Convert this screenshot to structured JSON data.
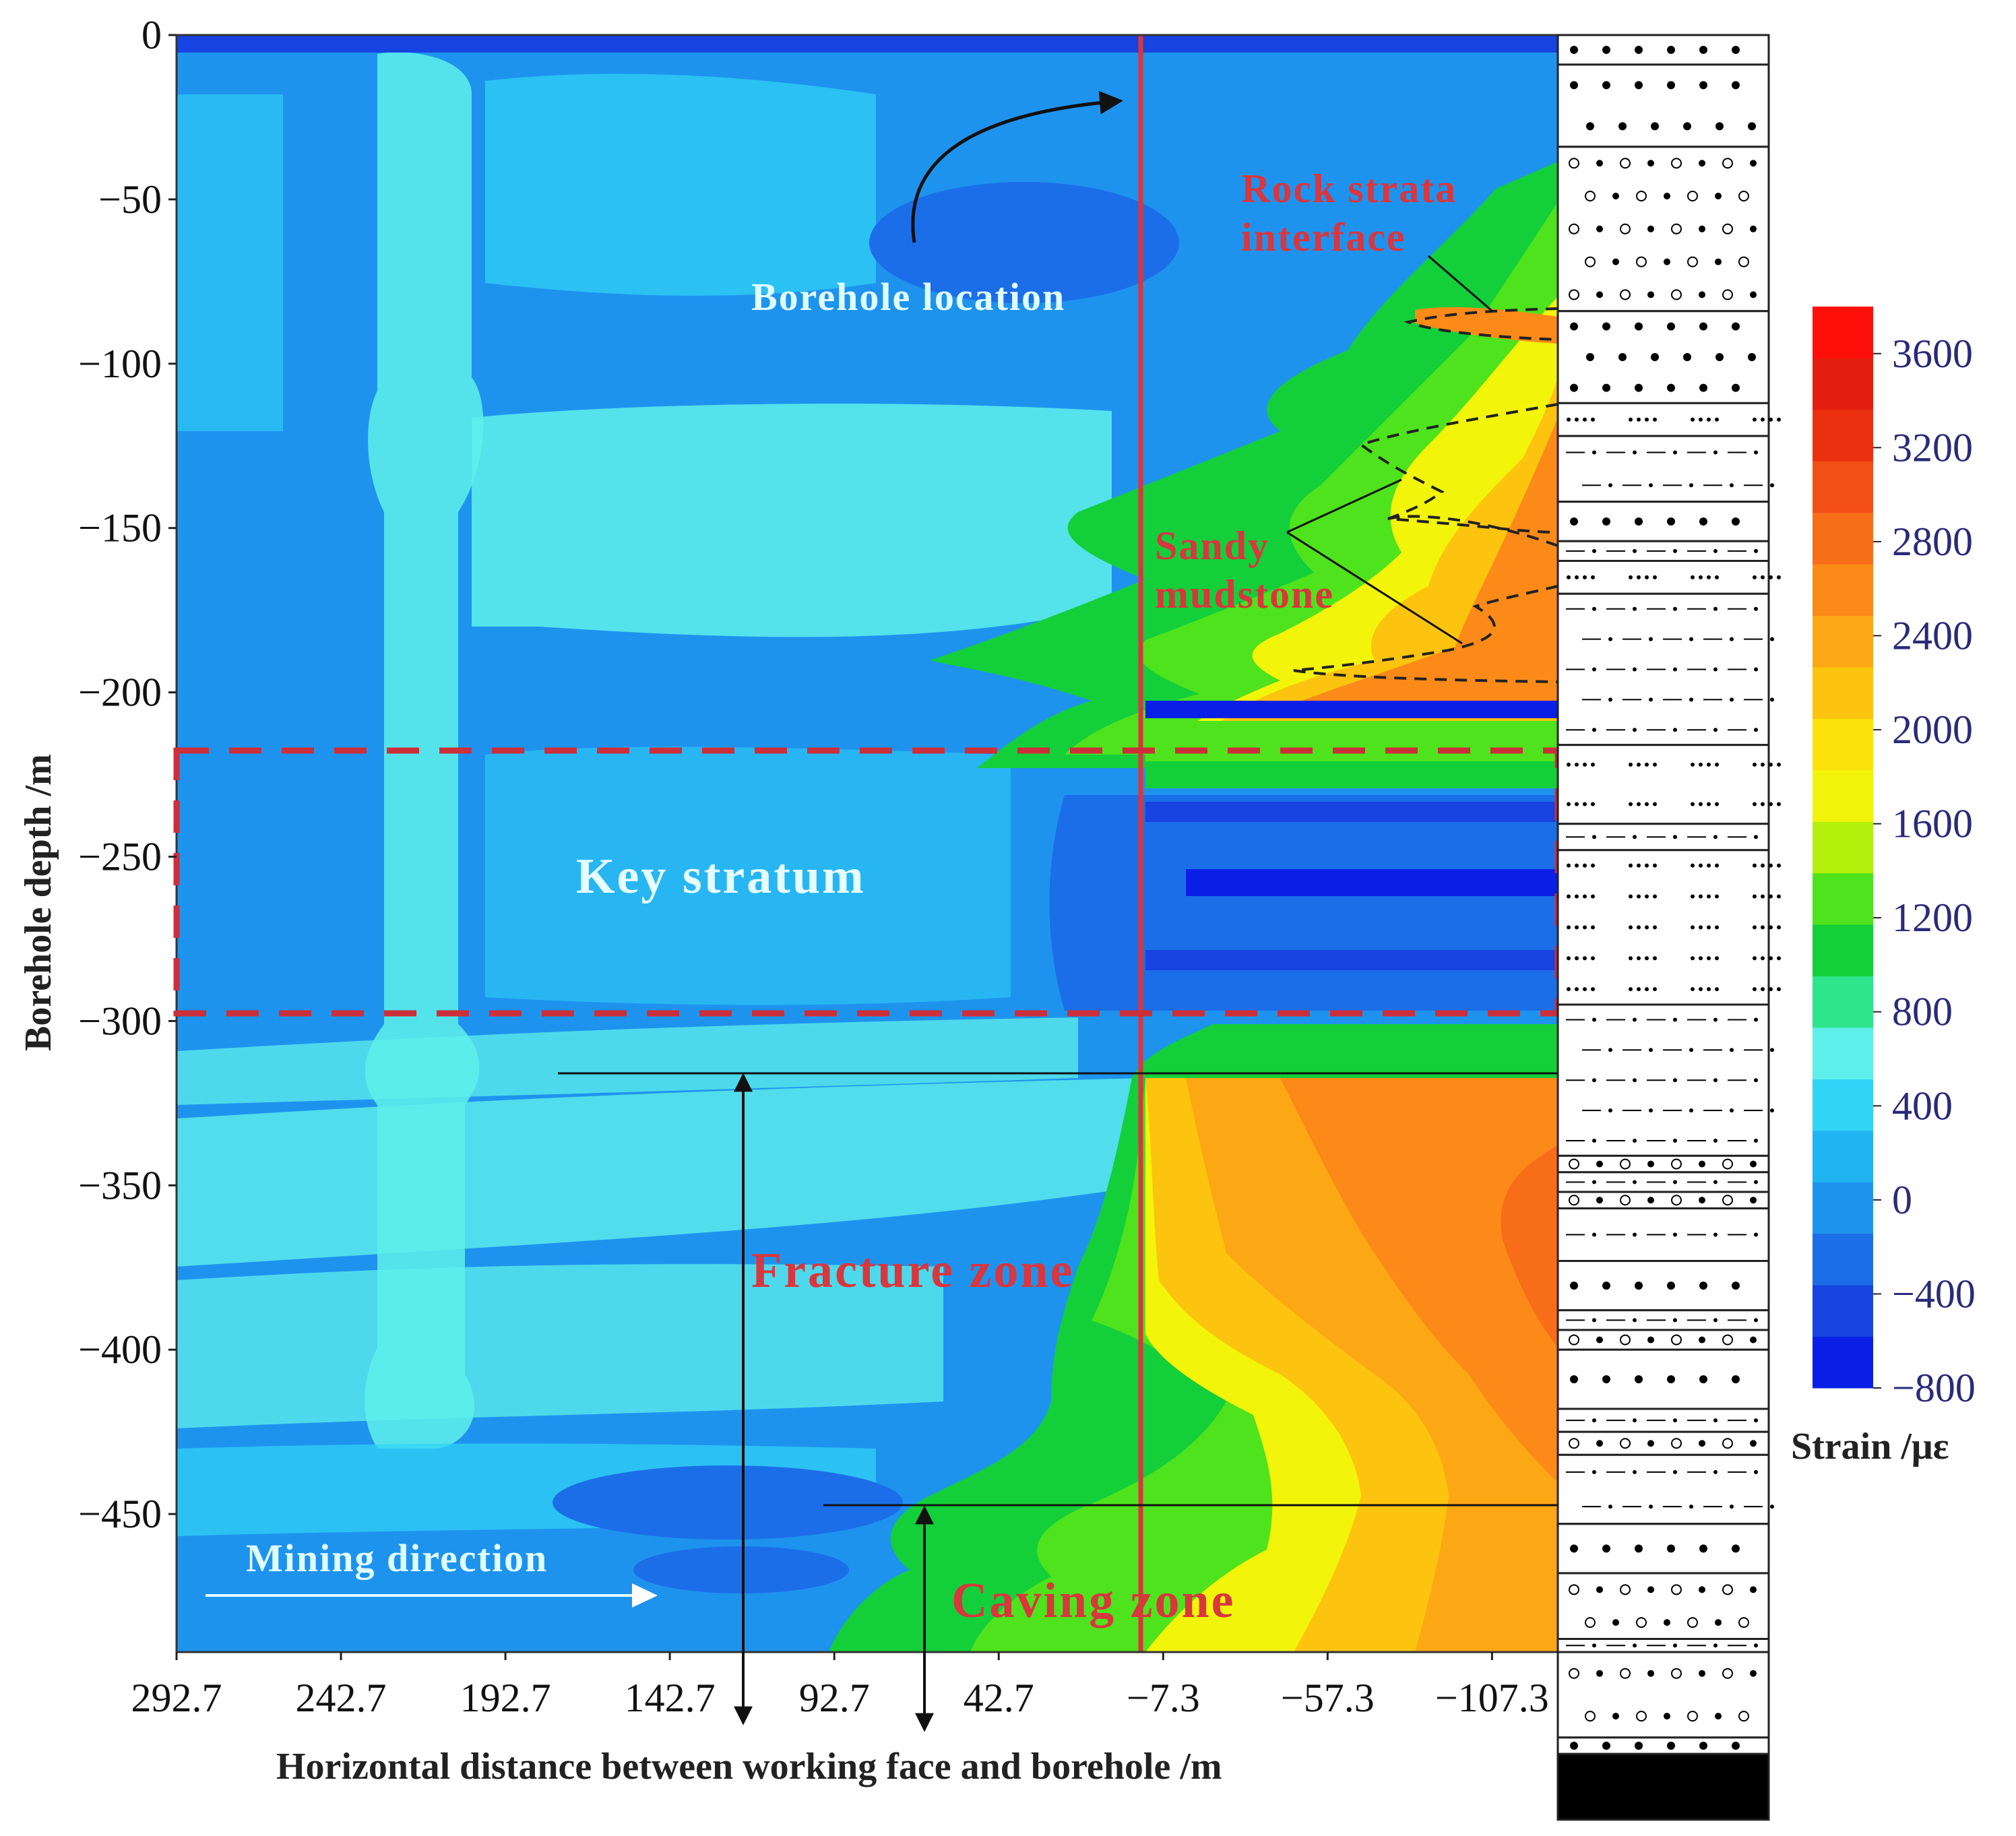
{
  "chart_data": {
    "type": "heatmap",
    "title": "",
    "xlabel": "Horizontal distance between working face and borehole /m",
    "ylabel": "Borehole depth /m",
    "x_ticks": [
      "292.7",
      "242.7",
      "192.7",
      "142.7",
      "92.7",
      "42.7",
      "−7.3",
      "−57.3",
      "−107.3"
    ],
    "x_tick_values": [
      292.7,
      242.7,
      192.7,
      142.7,
      92.7,
      42.7,
      -7.3,
      -57.3,
      -107.3
    ],
    "xlim": [
      292.7,
      -127.3
    ],
    "y_ticks": [
      "0",
      "−50",
      "−100",
      "−150",
      "−200",
      "−250",
      "−300",
      "−350",
      "−400",
      "−450"
    ],
    "y_tick_values": [
      0,
      -50,
      -100,
      -150,
      -200,
      -250,
      -300,
      -350,
      -400,
      -450
    ],
    "ylim": [
      0,
      -492
    ],
    "colorbar": {
      "label": "Strain /με",
      "ticks": [
        "3600",
        "3200",
        "2800",
        "2400",
        "2000",
        "1600",
        "1200",
        "800",
        "400",
        "0",
        "−400",
        "−800"
      ],
      "tick_values": [
        3600,
        3200,
        2800,
        2400,
        2000,
        1600,
        1200,
        800,
        400,
        0,
        -400,
        -800
      ],
      "range": [
        -800,
        3800
      ],
      "colors": [
        "#0a1fe6",
        "#1743e0",
        "#1c6ee8",
        "#1e93ee",
        "#21b4f2",
        "#31d4f5",
        "#5ef0ea",
        "#2ee58c",
        "#13cf3a",
        "#4ee31c",
        "#b3f00c",
        "#f2f40a",
        "#fae20a",
        "#fcc40e",
        "#fca714",
        "#fb8a18",
        "#f86d18",
        "#f24f16",
        "#eb3010",
        "#e31e0e",
        "#ff0f0a"
      ]
    },
    "key_stratum_depth": [
      -218,
      -297
    ],
    "borehole_x": -7.3,
    "fracture_zone_top": -316,
    "caving_zone_top": -447,
    "annotations": {
      "rock_strata_interface": "Rock strata\ninterface",
      "borehole_location": "Borehole location",
      "sandy_mudstone": "Sandy\nmudstone",
      "key_stratum": "Key stratum",
      "fracture_zone": "Fracture zone",
      "caving_zone": "Caving zone",
      "mining_direction": "Mining direction"
    },
    "strata_column": [
      {
        "top": 0,
        "bottom": -9,
        "pattern": "dots"
      },
      {
        "top": -9,
        "bottom": -34,
        "pattern": "dots"
      },
      {
        "top": -34,
        "bottom": -84,
        "pattern": "circles-dots"
      },
      {
        "top": -84,
        "bottom": -112,
        "pattern": "dots"
      },
      {
        "top": -112,
        "bottom": -122,
        "pattern": "crosses"
      },
      {
        "top": -122,
        "bottom": -142,
        "pattern": "dash-dot"
      },
      {
        "top": -142,
        "bottom": -154,
        "pattern": "dots"
      },
      {
        "top": -154,
        "bottom": -160,
        "pattern": "dash-dot"
      },
      {
        "top": -160,
        "bottom": -170,
        "pattern": "crosses"
      },
      {
        "top": -170,
        "bottom": -216,
        "pattern": "dash-dot"
      },
      {
        "top": -216,
        "bottom": -240,
        "pattern": "crosses"
      },
      {
        "top": -240,
        "bottom": -248,
        "pattern": "dash-dot"
      },
      {
        "top": -248,
        "bottom": -295,
        "pattern": "crosses"
      },
      {
        "top": -295,
        "bottom": -341,
        "pattern": "dash-dot"
      },
      {
        "top": -341,
        "bottom": -346,
        "pattern": "circles-dots"
      },
      {
        "top": -346,
        "bottom": -352,
        "pattern": "dash-dot"
      },
      {
        "top": -352,
        "bottom": -357,
        "pattern": "circles-dots"
      },
      {
        "top": -357,
        "bottom": -373,
        "pattern": "dash-dot"
      },
      {
        "top": -373,
        "bottom": -388,
        "pattern": "dots"
      },
      {
        "top": -388,
        "bottom": -394,
        "pattern": "dash-dot"
      },
      {
        "top": -394,
        "bottom": -400,
        "pattern": "circles-dots"
      },
      {
        "top": -400,
        "bottom": -418,
        "pattern": "dots"
      },
      {
        "top": -418,
        "bottom": -425,
        "pattern": "dash-dot"
      },
      {
        "top": -425,
        "bottom": -432,
        "pattern": "circles-dots"
      },
      {
        "top": -432,
        "bottom": -453,
        "pattern": "dash-dot"
      },
      {
        "top": -453,
        "bottom": -468,
        "pattern": "dots"
      },
      {
        "top": -468,
        "bottom": -488,
        "pattern": "circles-dots"
      },
      {
        "top": -488,
        "bottom": -492,
        "pattern": "dash-dot"
      },
      {
        "top": -492,
        "bottom": -518,
        "pattern": "circles-dots"
      },
      {
        "top": -518,
        "bottom": -523,
        "pattern": "dots"
      },
      {
        "top": -523,
        "bottom": -543,
        "pattern": "solid-black"
      }
    ]
  }
}
